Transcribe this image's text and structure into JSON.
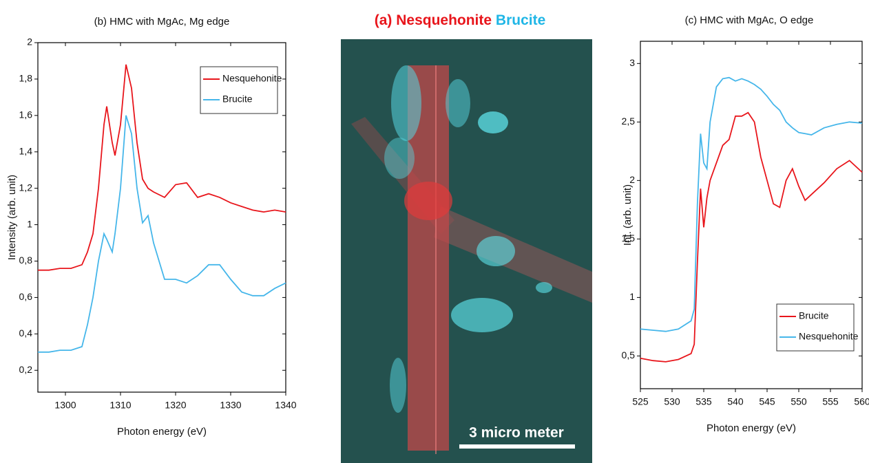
{
  "chart_data": [
    {
      "type": "line",
      "title": "(b) HMC with MgAc, Mg edge",
      "x_label": "Photon energy (eV)",
      "y_label": "Intensity (arb. unit)",
      "x": [
        1295,
        1297,
        1299,
        1301,
        1303,
        1304,
        1305,
        1306,
        1307,
        1307.5,
        1308.5,
        1309,
        1310,
        1311,
        1312,
        1313,
        1314,
        1315,
        1316,
        1318,
        1320,
        1322,
        1324,
        1326,
        1328,
        1330,
        1332,
        1334,
        1336,
        1338,
        1340
      ],
      "series": [
        {
          "name": "Nesquehonite",
          "color": "#e8151b",
          "values": [
            0.75,
            0.75,
            0.76,
            0.76,
            0.78,
            0.85,
            0.95,
            1.2,
            1.55,
            1.65,
            1.45,
            1.38,
            1.55,
            1.88,
            1.75,
            1.45,
            1.25,
            1.2,
            1.18,
            1.15,
            1.22,
            1.23,
            1.15,
            1.17,
            1.15,
            1.12,
            1.1,
            1.08,
            1.07,
            1.08,
            1.07
          ]
        },
        {
          "name": "Brucite",
          "color": "#45b6ea",
          "values": [
            0.3,
            0.3,
            0.31,
            0.31,
            0.33,
            0.45,
            0.6,
            0.8,
            0.95,
            0.92,
            0.85,
            0.95,
            1.2,
            1.6,
            1.5,
            1.2,
            1.01,
            1.05,
            0.9,
            0.7,
            0.7,
            0.68,
            0.72,
            0.78,
            0.78,
            0.7,
            0.63,
            0.61,
            0.61,
            0.65,
            0.68
          ]
        }
      ],
      "xlim": [
        1295,
        1340
      ],
      "xticks": [
        1300,
        1310,
        1320,
        1330,
        1340
      ],
      "ylim": [
        0.08,
        2
      ],
      "yticks": [
        {
          "value": 0.2,
          "label": "0,2"
        },
        {
          "value": 0.4,
          "label": "0,4"
        },
        {
          "value": 0.6,
          "label": "0,6"
        },
        {
          "value": 0.8,
          "label": "0,8"
        },
        1,
        {
          "value": 1.2,
          "label": "1,2"
        },
        {
          "value": 1.4,
          "label": "1,4"
        },
        {
          "value": 1.6,
          "label": "1,6"
        },
        {
          "value": 1.8,
          "label": "1,8"
        },
        2
      ],
      "legend": "upper right"
    },
    {
      "type": "line",
      "title": "(c) HMC with MgAc, O edge",
      "x_label": "Photon energy (eV)",
      "y_label": "Int. (arb. unit)",
      "x": [
        525,
        527,
        529,
        531,
        533,
        533.5,
        534,
        534.5,
        535,
        535.5,
        536,
        537,
        538,
        539,
        540,
        541,
        542,
        543,
        544,
        545,
        546,
        547,
        548,
        549,
        550,
        551,
        552,
        554,
        556,
        558,
        560
      ],
      "series": [
        {
          "name": "Brucite",
          "color": "#e8151b",
          "values": [
            0.48,
            0.46,
            0.45,
            0.47,
            0.52,
            0.6,
            1.3,
            1.93,
            1.6,
            1.85,
            2.0,
            2.15,
            2.3,
            2.35,
            2.55,
            2.55,
            2.58,
            2.5,
            2.2,
            2.0,
            1.8,
            1.77,
            2.0,
            2.1,
            1.95,
            1.83,
            1.88,
            1.98,
            2.1,
            2.17,
            2.07
          ]
        },
        {
          "name": "Nesquehonite",
          "color": "#45b6ea",
          "values": [
            0.73,
            0.72,
            0.71,
            0.73,
            0.8,
            0.9,
            1.8,
            2.4,
            2.15,
            2.1,
            2.5,
            2.8,
            2.87,
            2.88,
            2.85,
            2.87,
            2.85,
            2.82,
            2.78,
            2.72,
            2.65,
            2.6,
            2.5,
            2.45,
            2.41,
            2.4,
            2.39,
            2.45,
            2.48,
            2.5,
            2.49
          ]
        }
      ],
      "xlim": [
        525,
        560
      ],
      "xticks": [
        525,
        530,
        535,
        540,
        545,
        550,
        555,
        560
      ],
      "ylim": [
        0.22,
        3.19
      ],
      "yticks": [
        {
          "value": 0.5,
          "label": "0,5"
        },
        1,
        {
          "value": 1.5,
          "label": "1,5"
        },
        2,
        {
          "value": 2.5,
          "label": "2,5"
        },
        3
      ],
      "legend": "lower right"
    }
  ],
  "image": {
    "panel": "(a)",
    "label_red": "Nesquehonite",
    "label_cyan": "Brucite",
    "scale_bar": "3 micro meter"
  }
}
